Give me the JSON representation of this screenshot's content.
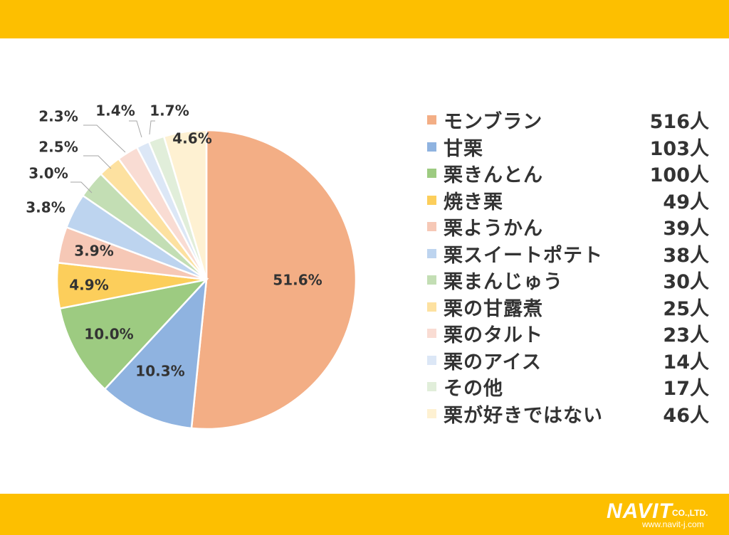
{
  "colors": {
    "band": "#FDBF00",
    "text": "#333333",
    "slices": [
      "#F3AE85",
      "#8FB3E0",
      "#9DCB81",
      "#FCCE5B",
      "#F6C8B6",
      "#BDD4EF",
      "#C3DEB4",
      "#FDE1A0",
      "#F9DCD3",
      "#DCE7F6",
      "#E1EEDA",
      "#FEF1D2"
    ]
  },
  "chart_data": {
    "type": "pie",
    "title": "",
    "slices": [
      {
        "name": "モンブラン",
        "count": "516人",
        "value": 51.6,
        "pct": "51.6%"
      },
      {
        "name": "甘栗",
        "count": "103人",
        "value": 10.3,
        "pct": "10.3%"
      },
      {
        "name": "栗きんとん",
        "count": "100人",
        "value": 10.0,
        "pct": "10.0%"
      },
      {
        "name": "焼き栗",
        "count": "49人",
        "value": 4.9,
        "pct": "4.9%"
      },
      {
        "name": "栗ようかん",
        "count": "39人",
        "value": 3.9,
        "pct": "3.9%"
      },
      {
        "name": "栗スイートポテト",
        "count": "38人",
        "value": 3.8,
        "pct": "3.8%"
      },
      {
        "name": "栗まんじゅう",
        "count": "30人",
        "value": 3.0,
        "pct": "3.0%"
      },
      {
        "name": "栗の甘露煮",
        "count": "25人",
        "value": 2.5,
        "pct": "2.5%"
      },
      {
        "name": "栗のタルト",
        "count": "23人",
        "value": 2.3,
        "pct": "2.3%"
      },
      {
        "name": "栗のアイス",
        "count": "14人",
        "value": 1.4,
        "pct": "1.4%"
      },
      {
        "name": "その他",
        "count": "17人",
        "value": 1.7,
        "pct": "1.7%"
      },
      {
        "name": "栗が好きではない",
        "count": "46人",
        "value": 4.6,
        "pct": "4.6%"
      }
    ],
    "legend_position": "right"
  },
  "logo": {
    "brand": "NAVIT",
    "suffix": "CO.,LTD.",
    "url": "www.navit-j.com"
  }
}
